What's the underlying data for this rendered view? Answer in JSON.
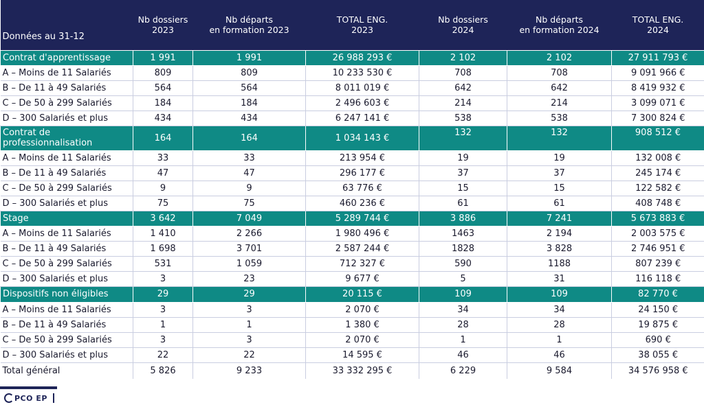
{
  "header": {
    "first_col": "Données au 31-12",
    "columns": [
      [
        "Nb dossiers",
        "2023"
      ],
      [
        "Nb départs",
        "en formation 2023"
      ],
      [
        "TOTAL ENG.",
        "2023"
      ],
      [
        "Nb dossiers",
        "2024"
      ],
      [
        "Nb départs",
        "en formation 2024"
      ],
      [
        "TOTAL ENG.",
        "2024"
      ]
    ]
  },
  "groups": [
    {
      "label": "Contrat d'apprentissage",
      "values": [
        "1 991",
        "1 991",
        "26 988 293 €",
        "2 102",
        "2 102",
        "27 911 793 €"
      ],
      "rows": [
        {
          "label": "A – Moins de 11 Salariés",
          "values": [
            "809",
            "809",
            "10 233 530 €",
            "708",
            "708",
            "9 091 966 €"
          ]
        },
        {
          "label": "B – De 11 à 49 Salariés",
          "values": [
            "564",
            "564",
            "8 011 019 €",
            "642",
            "642",
            "8 419 932 €"
          ]
        },
        {
          "label": "C – De 50 à 299 Salariés",
          "values": [
            "184",
            "184",
            "2 496 603 €",
            "214",
            "214",
            "3 099 071 €"
          ]
        },
        {
          "label": "D – 300 Salariés et plus",
          "values": [
            "434",
            "434",
            "6 247 141 €",
            "538",
            "538",
            "7 300 824 €"
          ]
        }
      ]
    },
    {
      "label": "Contrat de professionnalisation",
      "values": [
        "164",
        "164",
        "1 034 143 €",
        "132",
        "132",
        "908 512 €"
      ],
      "rows": [
        {
          "label": "A – Moins de 11 Salariés",
          "values": [
            "33",
            "33",
            "213 954 €",
            "19",
            "19",
            "132 008 €"
          ]
        },
        {
          "label": "B – De 11 à 49 Salariés",
          "values": [
            "47",
            "47",
            "296 177 €",
            "37",
            "37",
            "245 174 €"
          ]
        },
        {
          "label": "C – De 50 à 299 Salariés",
          "values": [
            "9",
            "9",
            "63 776 €",
            "15",
            "15",
            "122 582 €"
          ]
        },
        {
          "label": "D – 300 Salariés et plus",
          "values": [
            "75",
            "75",
            "460 236 €",
            "61",
            "61",
            "408 748 €"
          ]
        }
      ]
    },
    {
      "label": "Stage",
      "values": [
        "3 642",
        "7 049",
        "5 289 744 €",
        "3 886",
        "7 241",
        "5 673 883 €"
      ],
      "rows": [
        {
          "label": "A – Moins de 11 Salariés",
          "values": [
            "1 410",
            "2 266",
            "1 980 496 €",
            "1463",
            "2 194",
            "2 003 575 €"
          ]
        },
        {
          "label": "B – De 11 à 49 Salariés",
          "values": [
            "1 698",
            "3 701",
            "2 587 244 €",
            "1828",
            "3 828",
            "2 746 951 €"
          ]
        },
        {
          "label": "C – De 50 à 299 Salariés",
          "values": [
            "531",
            "1 059",
            "712 327 €",
            "590",
            "1188",
            "807 239 €"
          ]
        },
        {
          "label": "D – 300 Salariés et plus",
          "values": [
            "3",
            "23",
            "9 677 €",
            "5",
            "31",
            "116 118 €"
          ]
        }
      ]
    },
    {
      "label": "Dispositifs non éligibles",
      "values": [
        "29",
        "29",
        "20 115 €",
        "109",
        "109",
        "82 770 €"
      ],
      "rows": [
        {
          "label": "A – Moins de 11 Salariés",
          "values": [
            "3",
            "3",
            "2 070 €",
            "34",
            "34",
            "24 150 €"
          ]
        },
        {
          "label": "B – De 11 à 49 Salariés",
          "values": [
            "1",
            "1",
            "1 380 €",
            "28",
            "28",
            "19 875 €"
          ]
        },
        {
          "label": "C – De 50 à 299 Salariés",
          "values": [
            "3",
            "3",
            "2 070 €",
            "1",
            "1",
            "690 €"
          ]
        },
        {
          "label": "D – 300 Salariés et plus",
          "values": [
            "22",
            "22",
            "14 595 €",
            "46",
            "46",
            "38 055 €"
          ]
        }
      ]
    }
  ],
  "total": {
    "label": "Total général",
    "values": [
      "5 826",
      "9 233",
      "33 332 295 €",
      "6 229",
      "9 584",
      "34 576 958 €"
    ]
  },
  "footer": {
    "logo_text": "PCO EP"
  },
  "colors": {
    "header_bg": "#1e2458",
    "category_bg": "#0f8a85"
  }
}
